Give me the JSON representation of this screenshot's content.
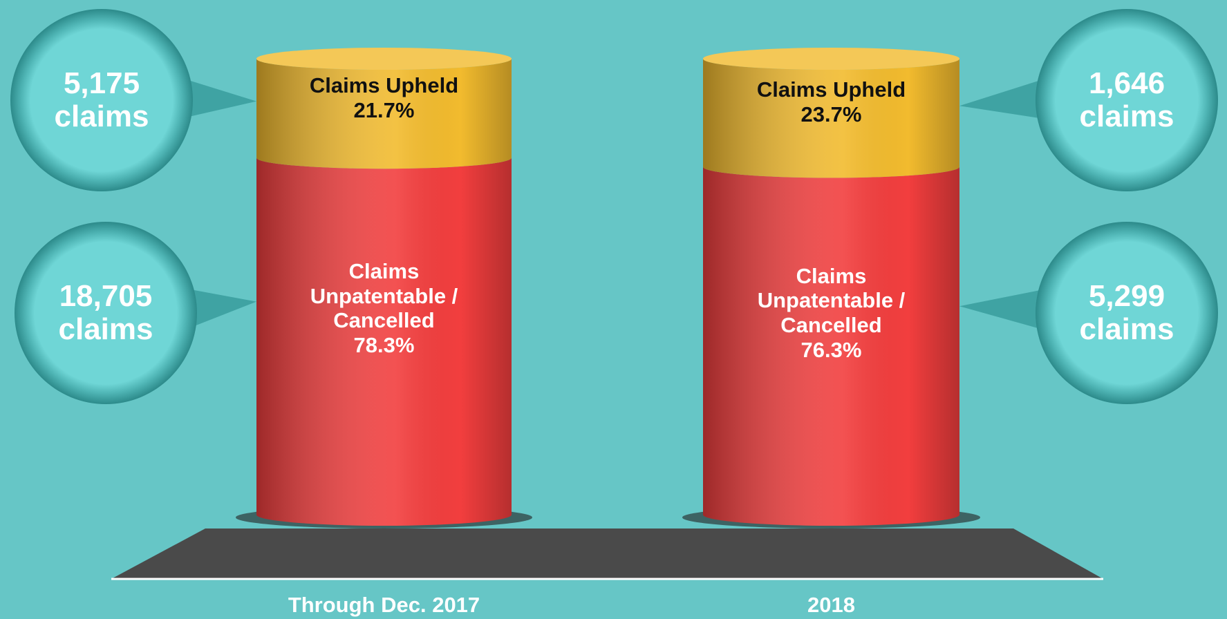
{
  "chart_data": {
    "type": "bar",
    "stacked": true,
    "categories": [
      "Through Dec. 2017",
      "2018"
    ],
    "series": [
      {
        "name": "Claims Unpatentable / Cancelled",
        "color": "#f23e3e",
        "values": [
          78.3,
          76.3
        ],
        "value_labels": [
          "78.3%",
          "76.3%"
        ],
        "counts": [
          18705,
          5299
        ],
        "count_labels": [
          "18,705 claims",
          "5,299 claims"
        ]
      },
      {
        "name": "Claims Upheld",
        "color": "#f2bb2e",
        "values": [
          21.7,
          23.7
        ],
        "value_labels": [
          "21.7%",
          "23.7%"
        ],
        "counts": [
          5175,
          1646
        ],
        "count_labels": [
          "5,175 claims",
          "1,646 claims"
        ]
      }
    ]
  }
}
